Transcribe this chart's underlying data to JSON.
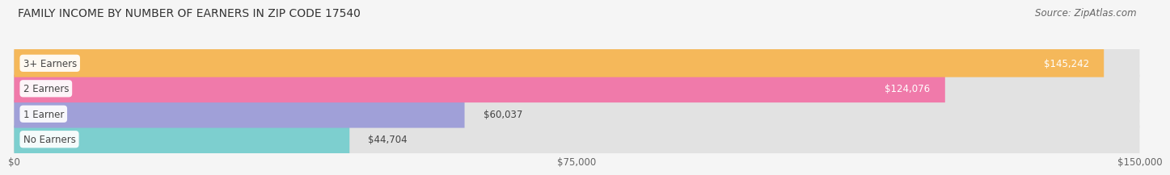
{
  "title": "FAMILY INCOME BY NUMBER OF EARNERS IN ZIP CODE 17540",
  "source": "Source: ZipAtlas.com",
  "categories": [
    "No Earners",
    "1 Earner",
    "2 Earners",
    "3+ Earners"
  ],
  "values": [
    44704,
    60037,
    124076,
    145242
  ],
  "bar_colors": [
    "#7dcfcf",
    "#a0a0d8",
    "#f07aaa",
    "#f5b85a"
  ],
  "value_labels": [
    "$44,704",
    "$60,037",
    "$124,076",
    "$145,242"
  ],
  "xmax": 150000,
  "xticks": [
    0,
    75000,
    150000
  ],
  "xtick_labels": [
    "$0",
    "$75,000",
    "$150,000"
  ],
  "background_color": "#f5f5f5",
  "bar_bg_color": "#e2e2e2",
  "title_fontsize": 10,
  "source_fontsize": 8.5,
  "label_fontsize": 8.5,
  "value_fontsize": 8.5
}
